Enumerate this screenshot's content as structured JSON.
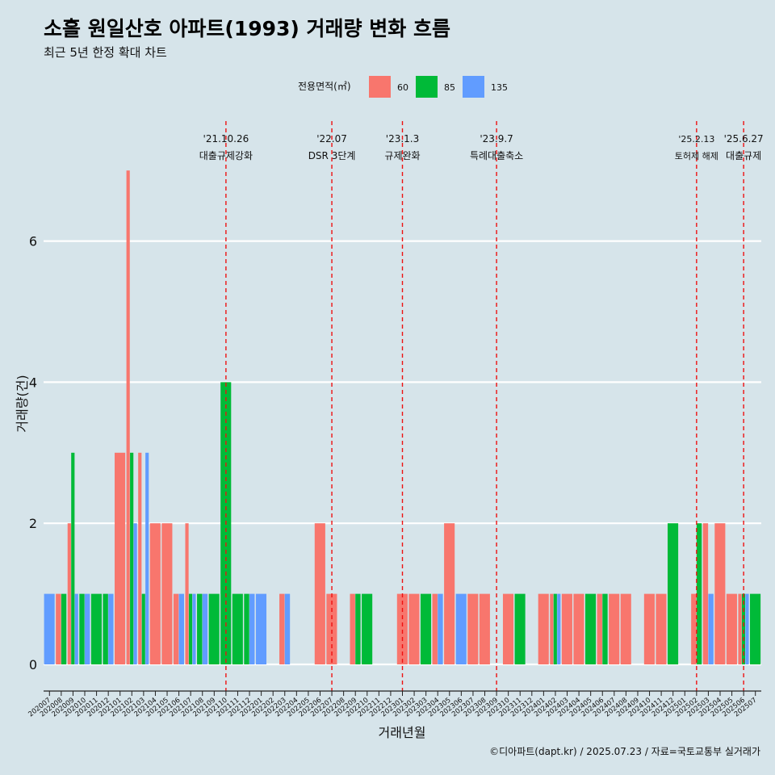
{
  "chart_data": {
    "type": "bar",
    "title": "소흘 원일산호 아파트(1993) 거래량 변화 흐름",
    "subtitle": "최근 5년 한정 확대 차트",
    "xlabel": "거래년월",
    "ylabel": "거래량(건)",
    "ylim": [
      -0.3,
      7.8
    ],
    "yticks": [
      0,
      2,
      4,
      6
    ],
    "grid": "horizontal",
    "legend": {
      "title": "전용면적(㎡)",
      "placement": "top",
      "items": [
        {
          "label": "60",
          "color": "#f8766d"
        },
        {
          "label": "85",
          "color": "#00ba38"
        },
        {
          "label": "135",
          "color": "#619cff"
        }
      ]
    },
    "categories": [
      "202007",
      "202008",
      "202009",
      "202010",
      "202011",
      "202012",
      "202101",
      "202102",
      "202103",
      "202104",
      "202105",
      "202106",
      "202107",
      "202108",
      "202109",
      "202110",
      "202111",
      "202112",
      "202201",
      "202202",
      "202203",
      "202204",
      "202205",
      "202206",
      "202207",
      "202208",
      "202209",
      "202210",
      "202211",
      "202212",
      "202301",
      "202302",
      "202303",
      "202304",
      "202305",
      "202306",
      "202307",
      "202308",
      "202309",
      "202310",
      "202311",
      "202312",
      "202401",
      "202402",
      "202403",
      "202404",
      "202405",
      "202406",
      "202407",
      "202408",
      "202409",
      "202410",
      "202411",
      "202412",
      "202501",
      "202502",
      "202503",
      "202504",
      "202505",
      "202506",
      "202507"
    ],
    "series": [
      {
        "name": "60",
        "color": "#f8766d",
        "values": [
          0,
          1,
          2,
          0,
          0,
          0,
          3,
          7,
          3,
          2,
          2,
          1,
          2,
          0,
          0,
          0,
          0,
          0,
          0,
          0,
          1,
          0,
          0,
          2,
          1,
          0,
          1,
          0,
          0,
          0,
          1,
          1,
          0,
          1,
          2,
          0,
          1,
          1,
          0,
          1,
          0,
          0,
          1,
          1,
          1,
          1,
          0,
          1,
          1,
          1,
          0,
          1,
          1,
          0,
          0,
          1,
          2,
          2,
          1,
          1,
          0
        ]
      },
      {
        "name": "85",
        "color": "#00ba38",
        "values": [
          0,
          1,
          3,
          1,
          1,
          1,
          0,
          3,
          1,
          0,
          0,
          0,
          1,
          1,
          1,
          4,
          1,
          1,
          0,
          0,
          0,
          0,
          0,
          0,
          0,
          0,
          1,
          1,
          0,
          0,
          0,
          0,
          1,
          0,
          0,
          0,
          0,
          0,
          0,
          0,
          1,
          0,
          0,
          1,
          0,
          0,
          1,
          1,
          0,
          0,
          0,
          0,
          0,
          2,
          0,
          2,
          0,
          0,
          0,
          1,
          1
        ]
      },
      {
        "name": "135",
        "color": "#619cff",
        "values": [
          1,
          0,
          1,
          1,
          0,
          1,
          0,
          2,
          3,
          0,
          0,
          1,
          1,
          1,
          0,
          0,
          0,
          1,
          1,
          0,
          1,
          0,
          0,
          0,
          0,
          0,
          0,
          0,
          0,
          0,
          0,
          0,
          0,
          1,
          0,
          1,
          0,
          0,
          0,
          0,
          0,
          0,
          0,
          1,
          0,
          0,
          0,
          0,
          0,
          0,
          0,
          0,
          0,
          0,
          0,
          0,
          1,
          0,
          0,
          1,
          0
        ]
      }
    ],
    "annotations": [
      {
        "at": "202110",
        "date": "'21.10.26",
        "label": "대출규제강화"
      },
      {
        "at": "202207",
        "date": "'22.07",
        "label": "DSR 3단계"
      },
      {
        "at": "202301",
        "date": "'23.1.3",
        "label": "규제완화"
      },
      {
        "at": "202309",
        "date": "'23.9.7",
        "label": "특례대출축소"
      },
      {
        "at": "202502",
        "date": "'25.2.13",
        "label": "토허제 해제"
      },
      {
        "at": "202506",
        "date": "'25.6.27",
        "label": "대출규제"
      }
    ],
    "caption": "©디아파트(dapt.kr) / 2025.07.23 / 자료=국토교통부 실거래가"
  }
}
